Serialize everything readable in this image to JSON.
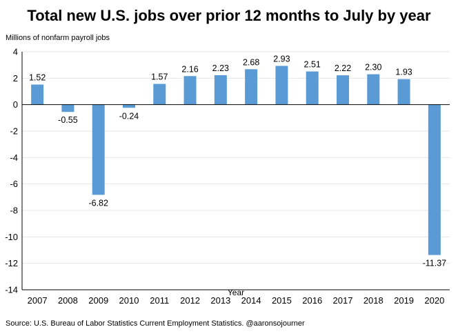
{
  "chart_data": {
    "type": "bar",
    "title": "Total new U.S. jobs over prior 12 months to July by year",
    "ylabel": "Millions of nonfarm payroll jobs",
    "xlabel": "Year",
    "source": "Source: U.S. Bureau of Labor Statistics Current Employment Statistics. @aaronsojourner",
    "categories": [
      "2007",
      "2008",
      "2009",
      "2010",
      "2011",
      "2012",
      "2013",
      "2014",
      "2015",
      "2016",
      "2017",
      "2018",
      "2019",
      "2020"
    ],
    "values": [
      1.52,
      -0.55,
      -6.82,
      -0.24,
      1.57,
      2.16,
      2.23,
      2.68,
      2.93,
      2.51,
      2.22,
      2.3,
      1.93,
      -11.37
    ],
    "value_labels": [
      "1.52",
      "-0.55",
      "-6.82",
      "-0.24",
      "1.57",
      "2.16",
      "2.23",
      "2.68",
      "2.93",
      "2.51",
      "2.22",
      "2.30",
      "1.93",
      "-11.37"
    ],
    "ylim": [
      -14,
      4
    ],
    "yticks": [
      4,
      2,
      0,
      -2,
      -4,
      -6,
      -8,
      -10,
      -12,
      -14
    ],
    "ytick_labels": [
      "4",
      "2",
      "0",
      "-2",
      "-4",
      "-6",
      "-8",
      "-10",
      "-12",
      "-14"
    ],
    "grid": true,
    "legend": "none",
    "bar_color": "#5B9BD5",
    "grid_color": "#E6E6E6"
  }
}
